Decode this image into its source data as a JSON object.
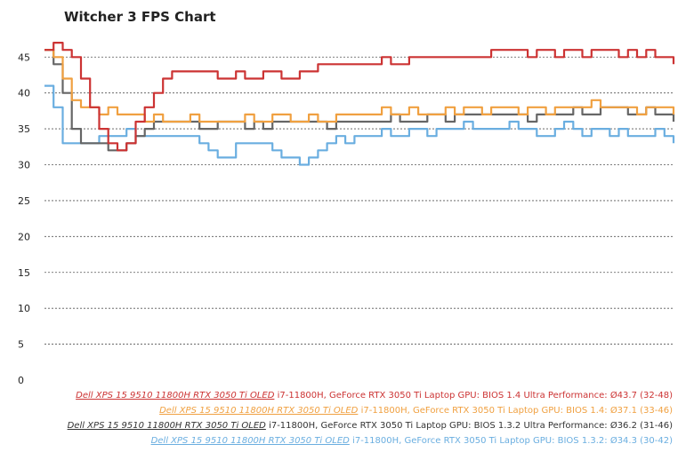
{
  "chart_data": {
    "type": "line",
    "title": "Witcher 3 FPS Chart",
    "xlabel": "",
    "ylabel": "",
    "ylim": [
      0,
      48
    ],
    "yticks": [
      0,
      5,
      10,
      15,
      20,
      25,
      30,
      35,
      40,
      45
    ],
    "grid": true,
    "legend_position": "bottom-right",
    "series": [
      {
        "name": "Dell XPS 15 9510 11800H RTX 3050 Ti OLED",
        "detail": "i7-11800H, GeForce RTX 3050 Ti Laptop GPU: BIOS 1.4 Ultra Performance: Ø43.7 (32-48)",
        "color": "#cc3333",
        "avg": 43.7,
        "min": 32,
        "max": 48,
        "values": [
          46,
          47,
          46,
          45,
          42,
          38,
          35,
          33,
          32,
          33,
          36,
          38,
          40,
          42,
          43,
          43,
          43,
          43,
          43,
          42,
          42,
          43,
          42,
          42,
          43,
          43,
          42,
          42,
          43,
          43,
          44,
          44,
          44,
          44,
          44,
          44,
          44,
          45,
          44,
          44,
          45,
          45,
          45,
          45,
          45,
          45,
          45,
          45,
          45,
          46,
          46,
          46,
          46,
          45,
          46,
          46,
          45,
          46,
          46,
          45,
          46,
          46,
          46,
          45,
          46,
          45,
          46,
          45,
          45,
          44
        ]
      },
      {
        "name": "Dell XPS 15 9510 11800H RTX 3050 Ti OLED",
        "detail": "i7-11800H, GeForce RTX 3050 Ti Laptop GPU: BIOS 1.4: Ø37.1 (33-46)",
        "color": "#f0a040",
        "avg": 37.1,
        "min": 33,
        "max": 46,
        "values": [
          46,
          45,
          42,
          39,
          38,
          38,
          37,
          38,
          37,
          37,
          37,
          36,
          37,
          36,
          36,
          36,
          37,
          36,
          36,
          36,
          36,
          36,
          37,
          36,
          36,
          37,
          37,
          36,
          36,
          37,
          36,
          36,
          37,
          37,
          37,
          37,
          37,
          38,
          37,
          37,
          38,
          37,
          37,
          37,
          38,
          37,
          38,
          38,
          37,
          38,
          38,
          38,
          37,
          38,
          38,
          37,
          38,
          38,
          38,
          38,
          39,
          38,
          38,
          38,
          38,
          37,
          38,
          38,
          38,
          37
        ]
      },
      {
        "name": "Dell XPS 15 9510 11800H RTX 3050 Ti OLED",
        "detail": "i7-11800H, GeForce RTX 3050 Ti Laptop GPU: BIOS 1.3.2 Ultra Performance: Ø36.2 (31-46)",
        "color": "#666666",
        "avg": 36.2,
        "min": 31,
        "max": 46,
        "values": [
          46,
          44,
          40,
          35,
          33,
          33,
          33,
          32,
          32,
          33,
          34,
          35,
          36,
          36,
          36,
          36,
          36,
          35,
          35,
          36,
          36,
          36,
          35,
          36,
          35,
          36,
          36,
          36,
          36,
          36,
          36,
          35,
          36,
          36,
          36,
          36,
          36,
          36,
          37,
          36,
          36,
          36,
          37,
          37,
          36,
          37,
          37,
          37,
          37,
          37,
          37,
          37,
          37,
          36,
          37,
          37,
          37,
          37,
          38,
          37,
          37,
          38,
          38,
          38,
          37,
          37,
          38,
          37,
          37,
          36
        ]
      },
      {
        "name": "Dell XPS 15 9510 11800H RTX 3050 Ti OLED",
        "detail": "i7-11800H, GeForce RTX 3050 Ti Laptop GPU: BIOS 1.3.2: Ø34.3 (30-42)",
        "color": "#6aaee0",
        "avg": 34.3,
        "min": 30,
        "max": 42,
        "values": [
          41,
          38,
          33,
          33,
          33,
          33,
          34,
          34,
          34,
          35,
          34,
          34,
          34,
          34,
          34,
          34,
          34,
          33,
          32,
          31,
          31,
          33,
          33,
          33,
          33,
          32,
          31,
          31,
          30,
          31,
          32,
          33,
          34,
          33,
          34,
          34,
          34,
          35,
          34,
          34,
          35,
          35,
          34,
          35,
          35,
          35,
          36,
          35,
          35,
          35,
          35,
          36,
          35,
          35,
          34,
          34,
          35,
          36,
          35,
          34,
          35,
          35,
          34,
          35,
          34,
          34,
          34,
          35,
          34,
          33
        ]
      }
    ]
  }
}
